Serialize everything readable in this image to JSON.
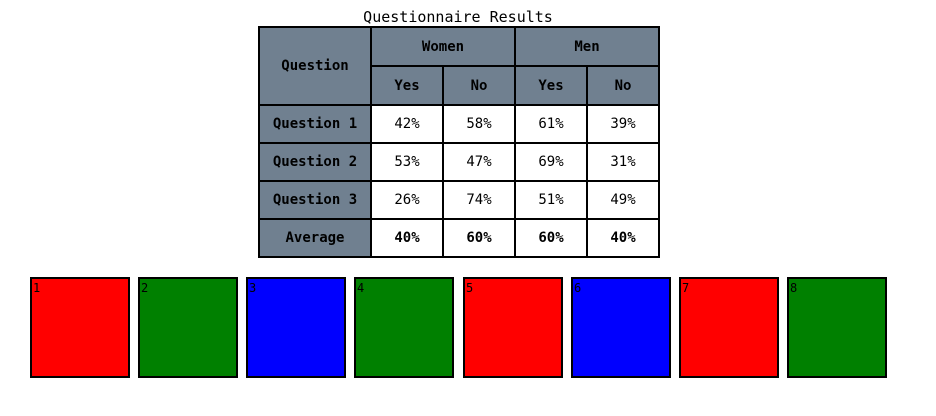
{
  "table": {
    "caption": "Questionnaire Results",
    "corner_header": "Question",
    "groups": [
      "Women",
      "Men"
    ],
    "subheaders": [
      "Yes",
      "No",
      "Yes",
      "No"
    ],
    "rows": [
      {
        "label": "Question 1",
        "values": [
          "42%",
          "58%",
          "61%",
          "39%"
        ]
      },
      {
        "label": "Question 2",
        "values": [
          "53%",
          "47%",
          "69%",
          "31%"
        ]
      },
      {
        "label": "Question 3",
        "values": [
          "26%",
          "74%",
          "51%",
          "49%"
        ]
      }
    ],
    "average": {
      "label": "Average",
      "values": [
        "40%",
        "60%",
        "60%",
        "40%"
      ]
    }
  },
  "boxes": [
    {
      "label": "1",
      "color": "#ff0000"
    },
    {
      "label": "2",
      "color": "#008000"
    },
    {
      "label": "3",
      "color": "#0000ff"
    },
    {
      "label": "4",
      "color": "#008000"
    },
    {
      "label": "5",
      "color": "#ff0000"
    },
    {
      "label": "6",
      "color": "#0000ff"
    },
    {
      "label": "7",
      "color": "#ff0000"
    },
    {
      "label": "8",
      "color": "#008000"
    }
  ],
  "colors": {
    "header_bg": "#708090",
    "cell_bg": "#ffffff",
    "border": "#000000"
  }
}
